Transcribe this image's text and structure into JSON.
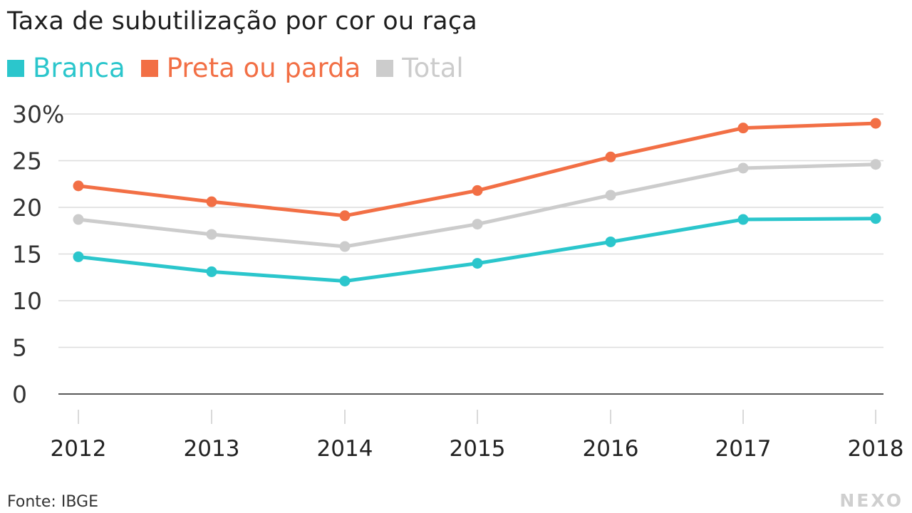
{
  "chart_data": {
    "type": "line",
    "title": "Taxa de subutilização por cor ou raça",
    "x": [
      "2012",
      "2013",
      "2014",
      "2015",
      "2016",
      "2017",
      "2018"
    ],
    "series": [
      {
        "name": "Branca",
        "color": "#2bc6cc",
        "values": [
          14.7,
          13.1,
          12.1,
          14.0,
          16.3,
          18.7,
          18.8
        ]
      },
      {
        "name": "Preta ou parda",
        "color": "#f26f45",
        "values": [
          22.3,
          20.6,
          19.1,
          21.8,
          25.4,
          28.5,
          29.0
        ]
      },
      {
        "name": "Total",
        "color": "#cccccc",
        "values": [
          18.7,
          17.1,
          15.8,
          18.2,
          21.3,
          24.2,
          24.6
        ]
      }
    ],
    "y_ticks": [
      "0",
      "5",
      "10",
      "15",
      "20",
      "25",
      "30%"
    ],
    "y_tick_values": [
      0,
      5,
      10,
      15,
      20,
      25,
      30
    ],
    "ylim": [
      0,
      30
    ],
    "grid": true,
    "legend_position": "top-left",
    "source": "Fonte: IBGE",
    "brand": "NEXO"
  }
}
